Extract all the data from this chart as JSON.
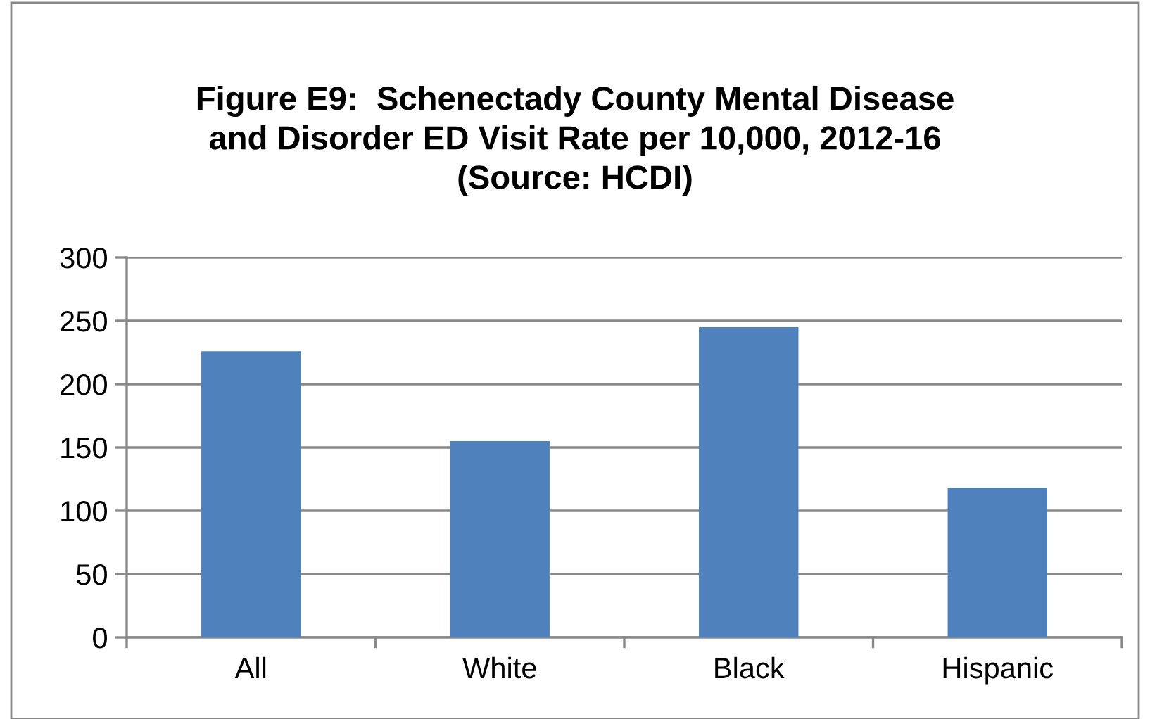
{
  "chart_data": {
    "type": "bar",
    "title": "Figure E9:  Schenectady County Mental Disease\nand Disorder ED Visit Rate per 10,000, 2012-16\n(Source: HCDI)",
    "categories": [
      "All",
      "White",
      "Black",
      "Hispanic"
    ],
    "values": [
      226,
      155,
      245,
      118
    ],
    "color": "#4f81bd",
    "ylim": [
      0,
      300
    ],
    "yticks": [
      0,
      50,
      100,
      150,
      200,
      250,
      300
    ],
    "grid": "y"
  }
}
